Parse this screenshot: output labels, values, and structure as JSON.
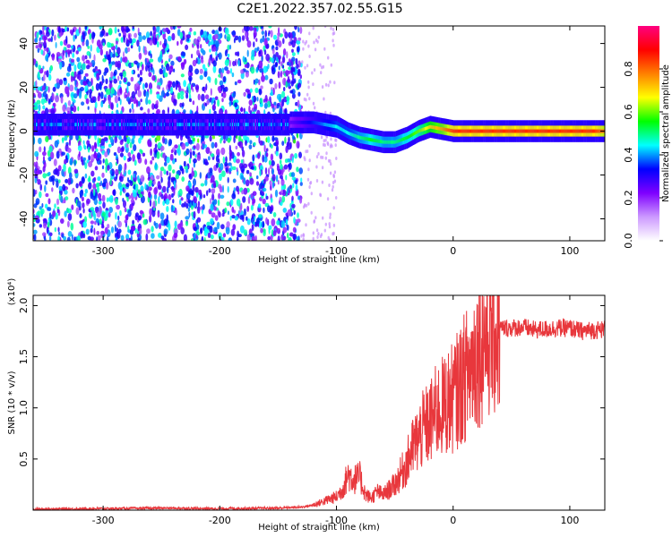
{
  "figure": {
    "title": "C2E1.2022.357.02.55.G15"
  },
  "chart_data": [
    {
      "type": "heatmap",
      "xlabel": "Height of straight line (km)",
      "ylabel": "Frequency (Hz)",
      "xlim": [
        -360,
        130
      ],
      "ylim": [
        -50,
        48
      ],
      "x_ticks": [
        -300,
        -200,
        -100,
        0,
        100
      ],
      "x_tick_labels": [
        "-300",
        "-200",
        "-100",
        "0",
        "100"
      ],
      "y_ticks": [
        -40,
        -20,
        0,
        20,
        40
      ],
      "y_tick_labels": [
        "-40",
        "-20",
        "0",
        "20",
        "40"
      ],
      "grid": false,
      "ridge": {
        "x": [
          -140,
          -130,
          -120,
          -110,
          -100,
          -90,
          -80,
          -70,
          -60,
          -50,
          -40,
          -30,
          -20,
          -10,
          0,
          20,
          40,
          60,
          80,
          100,
          120,
          130
        ],
        "y": [
          4,
          4,
          4,
          3,
          2,
          -1,
          -3,
          -4,
          -5,
          -5,
          -3,
          0,
          2,
          1,
          0,
          0,
          0,
          0,
          0,
          0,
          0,
          0
        ],
        "amplitude": [
          0.25,
          0.3,
          0.35,
          0.4,
          0.45,
          0.45,
          0.5,
          0.55,
          0.5,
          0.5,
          0.55,
          0.6,
          0.7,
          0.75,
          0.85,
          0.85,
          0.85,
          0.85,
          0.85,
          0.85,
          0.85,
          0.8
        ]
      },
      "colorbar": {
        "label": "Normalized spectral amplitude",
        "range": [
          0,
          1
        ],
        "ticks": [
          0.0,
          0.2,
          0.4,
          0.6,
          0.8
        ],
        "tick_labels": [
          "0.0",
          "0.2",
          "0.4",
          "0.6",
          "0.8"
        ],
        "colors": [
          "#ffffff",
          "#cc99ff",
          "#7f00ff",
          "#0000ff",
          "#00ffff",
          "#00ff00",
          "#ffff00",
          "#ff8000",
          "#ff0000",
          "#ff0080"
        ]
      }
    },
    {
      "type": "line",
      "xlabel": "Height of straight line (km)",
      "ylabel": "SNR (10 * v/v)",
      "scale_label": "(x10⁴)",
      "xlim": [
        -360,
        130
      ],
      "ylim": [
        0,
        21000
      ],
      "x_ticks": [
        -300,
        -200,
        -100,
        0,
        100
      ],
      "x_tick_labels": [
        "-300",
        "-200",
        "-100",
        "0",
        "100"
      ],
      "y_ticks": [
        5000,
        10000,
        15000,
        20000
      ],
      "y_tick_labels": [
        "0.5",
        "1.0",
        "1.5",
        "2.0"
      ],
      "grid": false,
      "color": "#e8373c",
      "series": [
        {
          "x": [
            -360,
            -300,
            -250,
            -200,
            -150,
            -130,
            -120,
            -110,
            -100,
            -95,
            -90,
            -85,
            -80,
            -75,
            -70,
            -65,
            -60,
            -55,
            -50,
            -45,
            -40,
            -35,
            -30,
            -25,
            -20,
            -15,
            -10,
            -5,
            0,
            5,
            10,
            15,
            20,
            25,
            30,
            35,
            40,
            50,
            60,
            70,
            80,
            90,
            100,
            110,
            120,
            130
          ],
          "y": [
            100,
            150,
            200,
            150,
            200,
            300,
            500,
            900,
            1300,
            2000,
            3500,
            3000,
            3200,
            1500,
            1200,
            1800,
            1500,
            2000,
            2500,
            3500,
            4500,
            6000,
            7000,
            8000,
            8500,
            9500,
            10000,
            10500,
            11000,
            12000,
            13000,
            14000,
            15500,
            16500,
            17200,
            17600,
            17800,
            17800,
            17900,
            17600,
            17700,
            17800,
            17800,
            17500,
            17600,
            17700
          ]
        }
      ]
    }
  ]
}
